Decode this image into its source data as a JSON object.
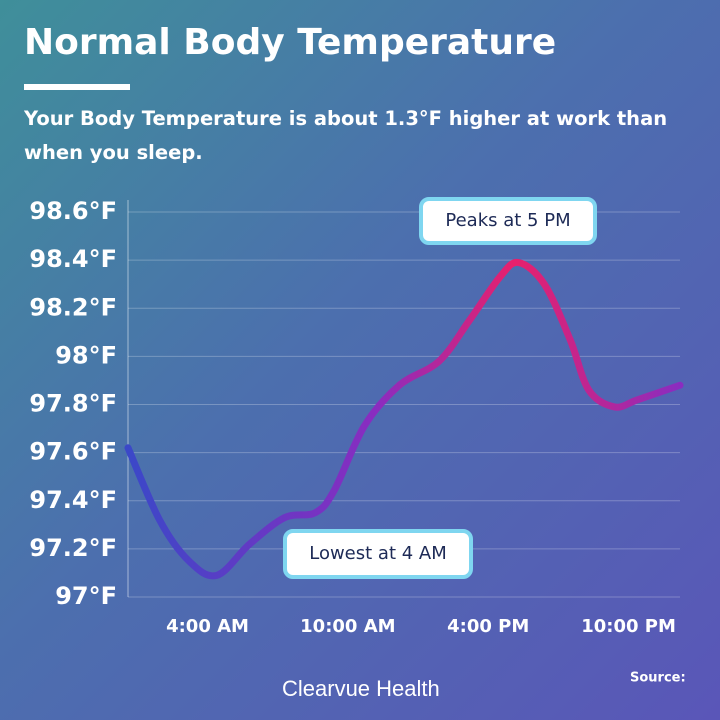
{
  "chart_data": {
    "type": "line",
    "title": "Normal Body Temperature",
    "subtitle": "Your Body Temperature is about 1.3°F higher at work than when you sleep.",
    "x": [
      0.6,
      1.95,
      3.2,
      4.4,
      5.8,
      7.3,
      8.6,
      9.4,
      10.7,
      12.2,
      13.9,
      15.2,
      16.5,
      17.3,
      18.4,
      19.5,
      20.3,
      21.4,
      22.4,
      24.2
    ],
    "series": [
      {
        "name": "Body temperature",
        "color": "#7a2cc4",
        "values": [
          97.62,
          97.32,
          97.15,
          97.09,
          97.22,
          97.33,
          97.35,
          97.44,
          97.71,
          97.88,
          97.98,
          98.15,
          98.33,
          98.39,
          98.3,
          98.07,
          97.86,
          97.79,
          97.82,
          97.88
        ]
      }
    ],
    "xlim": [
      0.6,
      24.2
    ],
    "xticks": [
      {
        "value": 4,
        "label": "4:00 AM"
      },
      {
        "value": 10,
        "label": "10:00 AM"
      },
      {
        "value": 16,
        "label": "4:00 PM"
      },
      {
        "value": 22,
        "label": "10:00 PM"
      }
    ],
    "ylim": [
      97,
      98.6
    ],
    "yticks": [
      {
        "value": 97,
        "label": "97°F"
      },
      {
        "value": 97.2,
        "label": "97.2°F"
      },
      {
        "value": 97.4,
        "label": "97.4°F"
      },
      {
        "value": 97.6,
        "label": "97.6°F"
      },
      {
        "value": 97.8,
        "label": "97.8°F"
      },
      {
        "value": 98,
        "label": "98°F"
      },
      {
        "value": 98.2,
        "label": "98.2°F"
      },
      {
        "value": 98.4,
        "label": "98.4°F"
      },
      {
        "value": 98.6,
        "label": "98.6°F"
      }
    ],
    "grid": true,
    "annotations": [
      "Peaks at 5 PM",
      "Lowest at 4 AM"
    ],
    "brand": "Clearvue Health",
    "source": "Source:"
  }
}
